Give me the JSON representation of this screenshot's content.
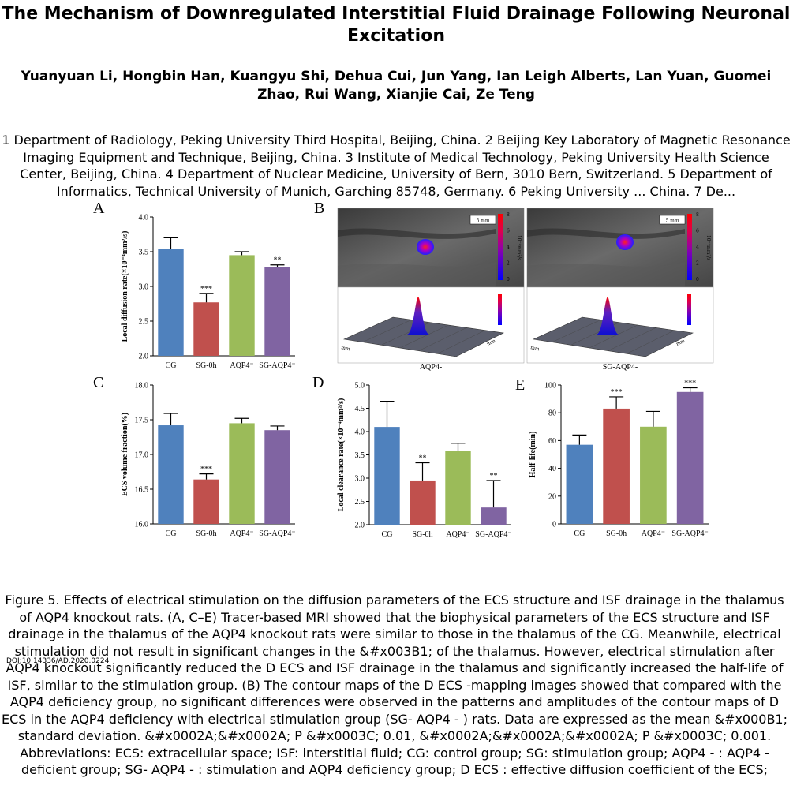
{
  "paper": {
    "title": "The Mechanism of Downregulated Interstitial Fluid Drainage Following Neuronal Excitation",
    "authors": "Yuanyuan Li, Hongbin Han, Kuangyu Shi, Dehua Cui, Jun Yang, Ian Leigh Alberts, Lan Yuan, Guomei Zhao, Rui Wang, Xianjie Cai, Ze Teng",
    "affiliations": "1 Department of Radiology, Peking University Third Hospital, Beijing, China. 2 Beijing Key Laboratory of Magnetic Resonance Imaging Equipment and Technique, Beijing, China. 3 Institute of Medical Technology, Peking University Health Science Center, Beijing, China. 4 Department of Nuclear Medicine, University of Bern, 3010 Bern, Switzerland. 5 Department of Informatics, Technical University of Munich, Garching 85748, Germany. 6 Peking University ... China. 7 De...",
    "doi": "DOI:10.14336/AD.2020.0224",
    "caption": "Figure 5. Effects of electrical stimulation on the diffusion parameters of the ECS structure and ISF drainage in the thalamus of AQP4 knockout rats. (A, C–E) Tracer-based MRI showed that the biophysical parameters of the ECS structure and ISF drainage in the thalamus of the AQP4 knockout rats were similar to those in the thalamus of the CG. Meanwhile, electrical stimulation did not result in significant changes in the &#x003B1; of the thalamus. However, electrical stimulation after AQP4 knockout significantly reduced the D ECS and ISF drainage in the thalamus and significantly increased the half-life of ISF, similar to the stimulation group. (B) The contour maps of the D ECS -mapping images showed that compared with the AQP4 deficiency group, no significant differences were observed in the patterns and amplitudes of the contour maps of D ECS in the AQP4 deficiency with electrical stimulation group (SG- AQP4 - ) rats. Data are expressed as the mean &#x000B1; standard deviation. &#x0002A;&#x0002A; P &#x0003C; 0.01, &#x0002A;&#x0002A;&#x0002A; P &#x0003C; 0.001. Abbreviations: ECS: extracellular space; ISF: interstitial fluid; CG: control group; SG: stimulation group; AQP4 - : AQP4 - deficient group; SG- AQP4 - : stimulation and AQP4 deficiency group; D ECS : effective diffusion coefficient of the ECS;"
  },
  "colors": {
    "cg": "#4f81bd",
    "sg0h": "#c0504d",
    "aqp4": "#9bbb59",
    "sgaqp4": "#8064a2"
  },
  "panel_b": {
    "label": "B",
    "left_caption": "AQP4-",
    "right_caption": "SG-AQP4-",
    "scale_text": "5 mm",
    "colorbar_ticks": [
      "8",
      "6",
      "4",
      "2",
      "0"
    ],
    "colorbar_unit": "10⁻⁴mm²/s",
    "axis_mm": "mm"
  },
  "chart_data": [
    {
      "label": "A",
      "type": "bar",
      "categories": [
        "CG",
        "SG-0h",
        "AQP4⁻",
        "SG-AQP4⁻"
      ],
      "values": [
        3.54,
        2.77,
        3.45,
        3.28
      ],
      "errors": [
        0.16,
        0.13,
        0.05,
        0.03
      ],
      "significance": [
        "",
        "***",
        "",
        "**"
      ],
      "ylabel": "Local  diffusion rate(×10⁻⁴mm²/s)",
      "ylim": [
        2.0,
        4.0
      ],
      "ticks": [
        2.0,
        2.5,
        3.0,
        3.5,
        4.0
      ],
      "tick_labels": [
        "2.0",
        "2.5",
        "3.0",
        "3.5",
        "4.0"
      ]
    },
    {
      "label": "C",
      "type": "bar",
      "categories": [
        "CG",
        "SG-0h",
        "AQP4⁻",
        "SG-AQP4⁻"
      ],
      "values": [
        17.42,
        16.64,
        17.45,
        17.35
      ],
      "errors": [
        0.17,
        0.08,
        0.07,
        0.06
      ],
      "significance": [
        "",
        "***",
        "",
        ""
      ],
      "ylabel": "ECS volume fraction(%)",
      "ylim": [
        16.0,
        18.0
      ],
      "ticks": [
        16.0,
        16.5,
        17.0,
        17.5,
        18.0
      ],
      "tick_labels": [
        "16.0",
        "16.5",
        "17.0",
        "17.5",
        "18.0"
      ]
    },
    {
      "label": "D",
      "type": "bar",
      "categories": [
        "CG",
        "SG-0h",
        "AQP4⁻",
        "SG-AQP4⁻"
      ],
      "values": [
        4.1,
        2.95,
        3.59,
        2.37
      ],
      "errors": [
        0.55,
        0.38,
        0.16,
        0.58
      ],
      "significance": [
        "",
        "**",
        "",
        "**"
      ],
      "ylabel": "Local  clearance rate(×10⁻⁴mm²/s)",
      "ylim": [
        2.0,
        5.0
      ],
      "ticks": [
        2.0,
        2.5,
        3.0,
        3.5,
        4.0,
        4.5,
        5.0
      ],
      "tick_labels": [
        "2.0",
        "2.5",
        "3.0",
        "3.5",
        "4.0",
        "4.5",
        "5.0"
      ]
    },
    {
      "label": "E",
      "type": "bar",
      "categories": [
        "CG",
        "SG-0h",
        "AQP4⁻",
        "SG-AQP4⁻"
      ],
      "values": [
        57,
        83,
        70,
        95
      ],
      "errors": [
        7,
        8.5,
        11,
        3
      ],
      "significance": [
        "",
        "***",
        "",
        "***"
      ],
      "ylabel": "Half-life(min)",
      "ylim": [
        0,
        100
      ],
      "ticks": [
        0,
        20,
        40,
        60,
        80,
        100
      ],
      "tick_labels": [
        "0",
        "20",
        "40",
        "60",
        "80",
        "100"
      ]
    }
  ]
}
